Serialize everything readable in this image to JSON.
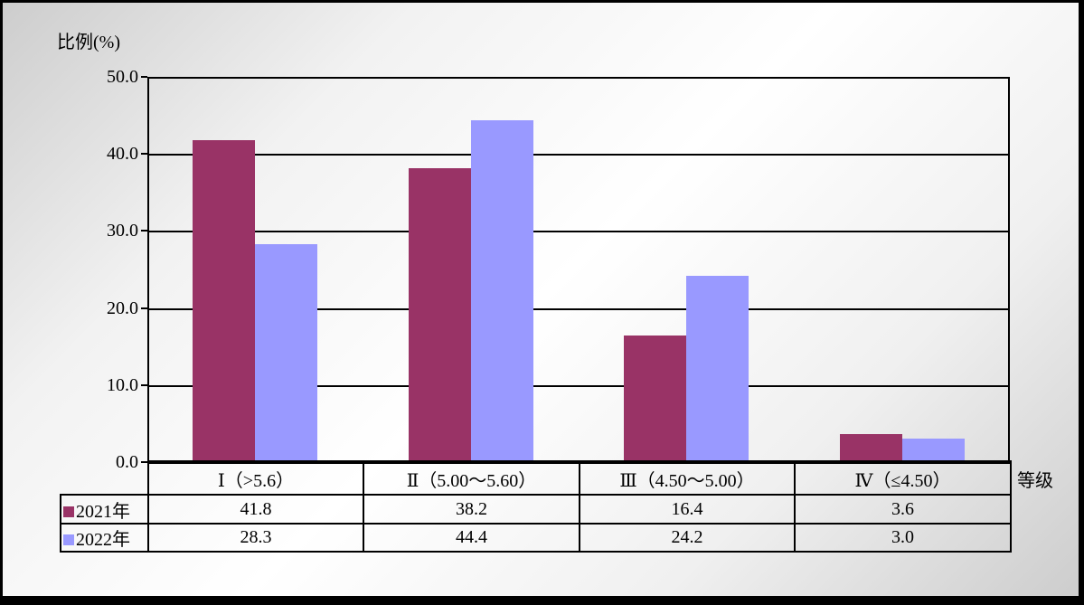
{
  "chart_data": {
    "type": "bar",
    "title": "",
    "ylabel": "比例(%)",
    "xlabel": "等级",
    "ylim": [
      0,
      50
    ],
    "ytick_step": 10,
    "ytick_labels": [
      "0.0",
      "10.0",
      "20.0",
      "30.0",
      "40.0",
      "50.0"
    ],
    "grid": true,
    "legend_position": "table-left",
    "value_decimals": 1,
    "categories": [
      "Ⅰ（>5.6）",
      "Ⅱ（5.00～5.60）",
      "Ⅲ（4.50～5.00）",
      "Ⅳ（≤4.50）"
    ],
    "series": [
      {
        "name": "2021年",
        "color": "#993366",
        "values": [
          41.8,
          38.2,
          16.4,
          3.6
        ]
      },
      {
        "name": "2022年",
        "color": "#9999FF",
        "values": [
          28.3,
          44.4,
          24.2,
          3.0
        ]
      }
    ]
  },
  "colors": {
    "axis": "#000000",
    "background_edge": "#cdcdcd",
    "background_center": "#ffffff",
    "frame": "#000000"
  }
}
